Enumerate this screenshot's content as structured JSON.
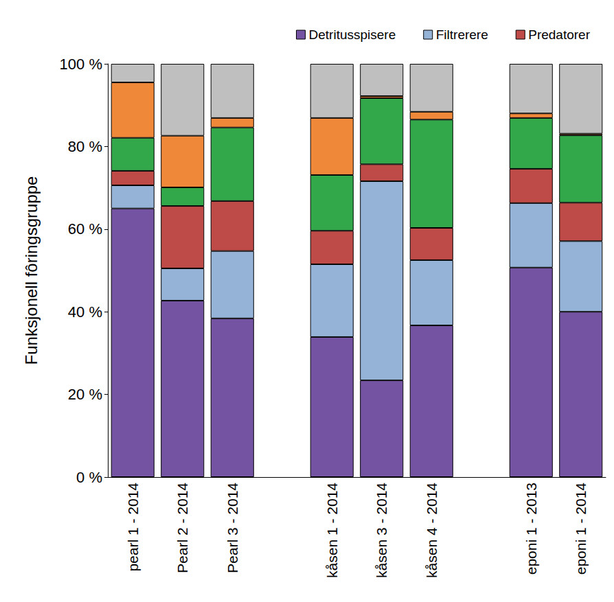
{
  "chart_data": {
    "type": "bar",
    "stacked": true,
    "y_label": "Funksjonell fôringsgruppe",
    "categories": [
      "pearl 1 - 2014",
      "Pearl 2 - 2014",
      "Pearl 3 - 2014",
      null,
      "kåsen 1 - 2014",
      "kåsen 3 - 2014",
      "kåsen 4 - 2014",
      null,
      "eponi 1 - 2013",
      "eponi 1 - 2014"
    ],
    "series": [
      {
        "name": "Detritusspisere",
        "color": "#7453a2",
        "values": [
          65.0,
          42.7,
          38.4,
          null,
          33.9,
          23.4,
          36.7,
          null,
          50.7,
          40.0
        ]
      },
      {
        "name": "Filtrerere",
        "color": "#95b3d7",
        "values": [
          5.6,
          7.8,
          16.3,
          null,
          17.6,
          48.2,
          15.8,
          null,
          15.6,
          17.1
        ]
      },
      {
        "name": "Predatorer",
        "color": "#be4b48",
        "values": [
          3.5,
          15.1,
          12.1,
          null,
          8.1,
          4.1,
          7.8,
          null,
          8.3,
          9.3
        ]
      },
      {
        "color": "#33a84b",
        "values": [
          8.0,
          4.5,
          17.8,
          null,
          13.5,
          16.0,
          26.2,
          null,
          12.3,
          16.3
        ]
      },
      {
        "color": "#f0883a",
        "values": [
          13.4,
          12.5,
          2.3,
          null,
          13.8,
          0.5,
          1.9,
          null,
          1.1,
          0.4
        ]
      },
      {
        "color": "#bfbfbf",
        "values": [
          4.5,
          17.4,
          13.1,
          null,
          13.1,
          7.8,
          11.6,
          null,
          12.0,
          16.9
        ]
      }
    ],
    "ylim": [
      0,
      100
    ],
    "yticks": [
      {
        "value": 0,
        "label": "0 %"
      },
      {
        "value": 20,
        "label": "20 %"
      },
      {
        "value": 40,
        "label": "40 %"
      },
      {
        "value": 60,
        "label": "60 %"
      },
      {
        "value": 80,
        "label": "80 %"
      },
      {
        "value": 100,
        "label": "100 %"
      }
    ],
    "grid": false,
    "legend": "top-right"
  }
}
